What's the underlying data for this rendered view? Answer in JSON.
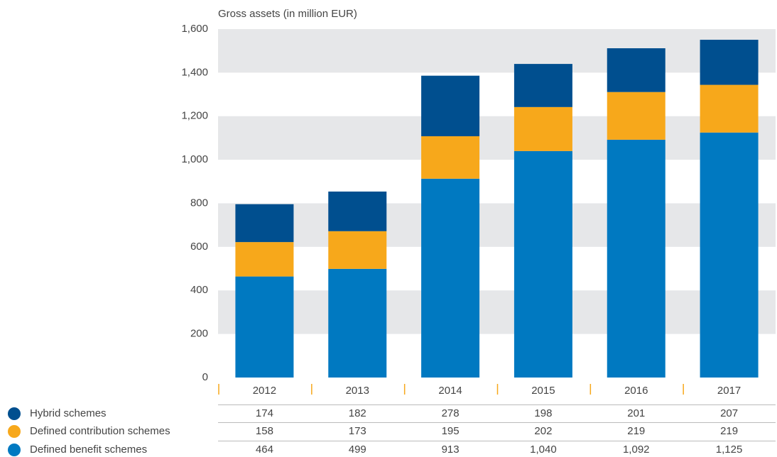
{
  "chart_data": {
    "type": "bar",
    "stacked": true,
    "y_axis_title": "Gross assets (in million EUR)",
    "categories": [
      "2012",
      "2013",
      "2014",
      "2015",
      "2016",
      "2017"
    ],
    "series": [
      {
        "name": "Hybrid schemes",
        "color": "#004f8f",
        "values": [
          174,
          182,
          278,
          198,
          201,
          207
        ]
      },
      {
        "name": "Defined contribution schemes",
        "color": "#f7a81b",
        "values": [
          158,
          173,
          195,
          202,
          219,
          219
        ]
      },
      {
        "name": "Defined benefit schemes",
        "color": "#0079c1",
        "values": [
          464,
          499,
          913,
          1040,
          1092,
          1125
        ],
        "value_labels": [
          "464",
          "499",
          "913",
          "1,040",
          "1,092",
          "1,125"
        ]
      }
    ],
    "ylim": [
      0,
      1600
    ],
    "yticks": [
      0,
      200,
      400,
      600,
      800,
      {
        "value": 1000,
        "label": "1,000"
      },
      {
        "value": 1200,
        "label": "1,200"
      },
      {
        "value": 1400,
        "label": "1,400"
      },
      {
        "value": 1600,
        "label": "1,600"
      }
    ],
    "grid": true,
    "grid_band_color": "#e6e7e9",
    "category_tick_color": "#f7a81b"
  }
}
